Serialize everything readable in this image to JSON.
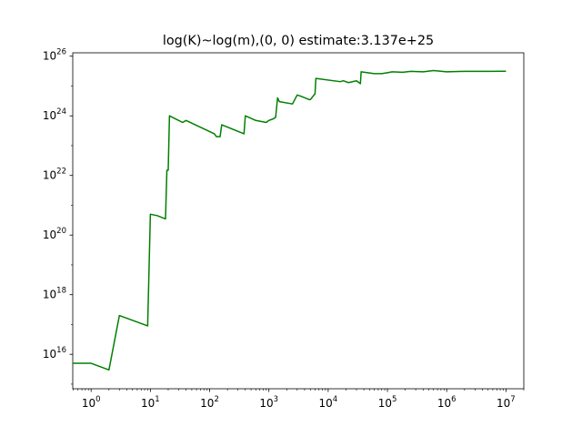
{
  "chart_data": {
    "type": "line",
    "title": "log(K)~log(m),(0, 0) estimate:3.137e+25",
    "xlabel": "",
    "ylabel": "",
    "xscale": "log",
    "yscale": "log",
    "xlim": [
      0.49,
      20000000
    ],
    "ylim": [
      700000000000000.0,
      1.3e+26
    ],
    "grid": false,
    "legend": "none",
    "x_ticks": [
      {
        "value": 1,
        "base": "10",
        "exp": "0"
      },
      {
        "value": 10,
        "base": "10",
        "exp": "1"
      },
      {
        "value": 100,
        "base": "10",
        "exp": "2"
      },
      {
        "value": 1000,
        "base": "10",
        "exp": "3"
      },
      {
        "value": 10000,
        "base": "10",
        "exp": "4"
      },
      {
        "value": 100000,
        "base": "10",
        "exp": "5"
      },
      {
        "value": 1000000,
        "base": "10",
        "exp": "6"
      },
      {
        "value": 10000000,
        "base": "10",
        "exp": "7"
      }
    ],
    "y_ticks": [
      {
        "value": 1e+16,
        "base": "10",
        "exp": "16"
      },
      {
        "value": 1e+18,
        "base": "10",
        "exp": "18"
      },
      {
        "value": 1e+20,
        "base": "10",
        "exp": "20"
      },
      {
        "value": 1e+22,
        "base": "10",
        "exp": "22"
      },
      {
        "value": 1e+24,
        "base": "10",
        "exp": "24"
      },
      {
        "value": 1e+26,
        "base": "10",
        "exp": "26"
      }
    ],
    "series": [
      {
        "color": "#008000",
        "x": [
          0.5,
          1,
          2,
          3,
          9,
          10,
          13,
          18,
          19,
          20,
          21,
          30,
          35,
          40,
          120,
          130,
          150,
          160,
          380,
          400,
          600,
          900,
          1000,
          1200,
          1300,
          1400,
          1500,
          2500,
          3000,
          3500,
          4800,
          5000,
          6000,
          6200,
          16000,
          18000,
          22000,
          30000,
          35000,
          36000,
          60000,
          80000,
          100000,
          120000,
          180000,
          250000,
          400000,
          600000,
          1000000,
          2000000,
          5000000,
          10000000
        ],
        "y": [
          5000000000000000.0,
          5000000000000000.0,
          3000000000000000.0,
          2e+17,
          9e+16,
          5e+20,
          4.5e+20,
          3.5e+20,
          1.5e+22,
          1.5e+22,
          1e+24,
          7e+23,
          6e+23,
          7e+23,
          2.5e+23,
          2e+23,
          2e+23,
          5e+23,
          2.5e+23,
          1e+24,
          7e+23,
          6e+23,
          7e+23,
          8e+23,
          9e+23,
          4e+24,
          3e+24,
          2.5e+24,
          5e+24,
          4.5e+24,
          3.5e+24,
          3.5e+24,
          5.5e+24,
          1.8e+25,
          1.4e+25,
          1.5e+25,
          1.3e+25,
          1.5e+25,
          1.2e+25,
          3e+25,
          2.6e+25,
          2.6e+25,
          2.8e+25,
          3e+25,
          2.9e+25,
          3.1e+25,
          3e+25,
          3.3e+25,
          3e+25,
          3.1e+25,
          3.1e+25,
          3.137e+25
        ]
      }
    ]
  }
}
